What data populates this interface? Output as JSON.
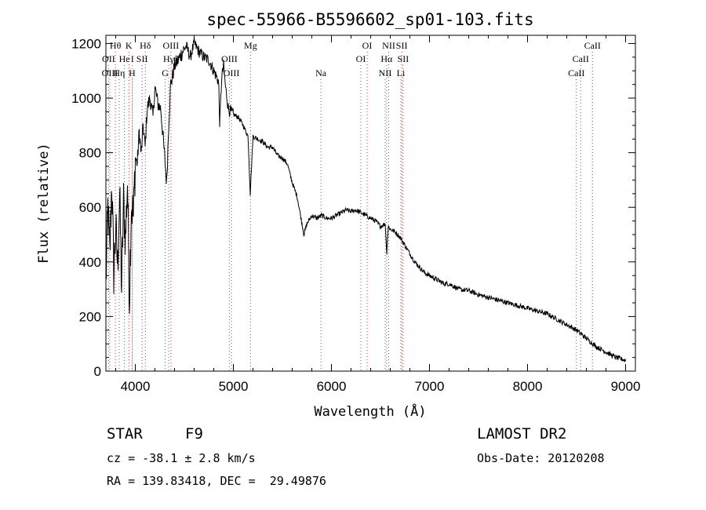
{
  "chart_data": {
    "type": "line",
    "title": "spec-55966-B5596602_sp01-103.fits",
    "xlabel": "Wavelength (Å)",
    "ylabel": "Flux (relative)",
    "xlim": [
      3700,
      9100
    ],
    "ylim": [
      0,
      1230
    ],
    "x_ticks": [
      4000,
      5000,
      6000,
      7000,
      8000,
      9000
    ],
    "y_ticks": [
      0,
      200,
      400,
      600,
      800,
      1000,
      1200
    ],
    "grid": false,
    "line_color": "#000000",
    "marker_color": "#cc3333",
    "spectrum": {
      "x": [
        3700,
        3720,
        3740,
        3760,
        3780,
        3800,
        3820,
        3840,
        3860,
        3880,
        3900,
        3920,
        3940,
        3950,
        3960,
        3980,
        4000,
        4020,
        4040,
        4060,
        4080,
        4100,
        4120,
        4150,
        4180,
        4200,
        4230,
        4260,
        4300,
        4320,
        4340,
        4360,
        4380,
        4400,
        4440,
        4480,
        4520,
        4560,
        4600,
        4650,
        4700,
        4750,
        4800,
        4850,
        4861,
        4880,
        4900,
        4920,
        4950,
        5000,
        5050,
        5100,
        5150,
        5172,
        5200,
        5250,
        5300,
        5350,
        5400,
        5450,
        5500,
        5550,
        5600,
        5650,
        5700,
        5720,
        5750,
        5800,
        5850,
        5900,
        5950,
        6000,
        6050,
        6100,
        6150,
        6200,
        6250,
        6300,
        6350,
        6400,
        6450,
        6500,
        6550,
        6563,
        6580,
        6600,
        6650,
        6700,
        6750,
        6800,
        6850,
        6900,
        6950,
        7000,
        7050,
        7100,
        7150,
        7200,
        7300,
        7400,
        7500,
        7600,
        7700,
        7800,
        7900,
        8000,
        8100,
        8200,
        8300,
        8400,
        8500,
        8600,
        8700,
        8800,
        8900,
        9000
      ],
      "y": [
        320,
        600,
        420,
        700,
        360,
        520,
        380,
        650,
        300,
        620,
        480,
        700,
        260,
        450,
        620,
        560,
        780,
        760,
        880,
        790,
        900,
        820,
        960,
        1000,
        930,
        1040,
        980,
        960,
        780,
        690,
        900,
        1050,
        1080,
        1120,
        1140,
        1170,
        1190,
        1150,
        1200,
        1170,
        1150,
        1140,
        1100,
        1060,
        900,
        1070,
        1120,
        1040,
        960,
        940,
        930,
        900,
        860,
        650,
        860,
        850,
        840,
        820,
        820,
        790,
        780,
        760,
        690,
        640,
        540,
        500,
        540,
        570,
        560,
        570,
        560,
        560,
        570,
        580,
        590,
        585,
        590,
        580,
        570,
        560,
        550,
        530,
        540,
        430,
        530,
        520,
        510,
        490,
        460,
        430,
        400,
        380,
        360,
        350,
        340,
        330,
        320,
        320,
        300,
        295,
        280,
        270,
        260,
        250,
        240,
        230,
        220,
        210,
        190,
        170,
        150,
        120,
        90,
        70,
        50,
        40
      ]
    },
    "lines": [
      {
        "label": "Hθ",
        "x": 3797,
        "row": 0
      },
      {
        "label": "K",
        "x": 3934,
        "row": 0
      },
      {
        "label": "Hδ",
        "x": 4102,
        "row": 0
      },
      {
        "label": "OIII",
        "x": 4363,
        "row": 0
      },
      {
        "label": "Mg",
        "x": 5175,
        "row": 0
      },
      {
        "label": "OI",
        "x": 6364,
        "row": 0
      },
      {
        "label": "NII",
        "x": 6584,
        "row": 0
      },
      {
        "label": "SII",
        "x": 6717,
        "row": 0
      },
      {
        "label": "CaII",
        "x": 8662,
        "row": 0
      },
      {
        "label": "OII",
        "x": 3727,
        "row": 1
      },
      {
        "label": "He",
        "x": 3889,
        "row": 1
      },
      {
        "label": "I",
        "x": 3970,
        "row": 1
      },
      {
        "label": "SII",
        "x": 4069,
        "row": 1
      },
      {
        "label": "Hγ",
        "x": 4340,
        "row": 1
      },
      {
        "label": "OIII",
        "x": 4959,
        "row": 1
      },
      {
        "label": "OI",
        "x": 6300,
        "row": 1
      },
      {
        "label": "Hα",
        "x": 6563,
        "row": 1
      },
      {
        "label": "SII",
        "x": 6731,
        "row": 1
      },
      {
        "label": "CaII",
        "x": 8542,
        "row": 1
      },
      {
        "label": "OIII",
        "x": 3740,
        "row": 2
      },
      {
        "label": "Hη",
        "x": 3835,
        "row": 2
      },
      {
        "label": "H",
        "x": 3968,
        "row": 2
      },
      {
        "label": "G",
        "x": 4305,
        "row": 2
      },
      {
        "label": "OIII",
        "x": 4980,
        "row": 2
      },
      {
        "label": "Na",
        "x": 5893,
        "row": 2
      },
      {
        "label": "NII",
        "x": 6548,
        "row": 2
      },
      {
        "label": "Li",
        "x": 6708,
        "row": 2
      },
      {
        "label": "CaII",
        "x": 8498,
        "row": 2
      }
    ]
  },
  "info": {
    "object_class": "STAR",
    "subclass": "F9",
    "release": "LAMOST DR2",
    "redshift": "cz = -38.1 ± 2.8 km/s",
    "obs_date": "Obs-Date: 20120208",
    "coords": "RA = 139.83418, DEC =  29.49876"
  }
}
